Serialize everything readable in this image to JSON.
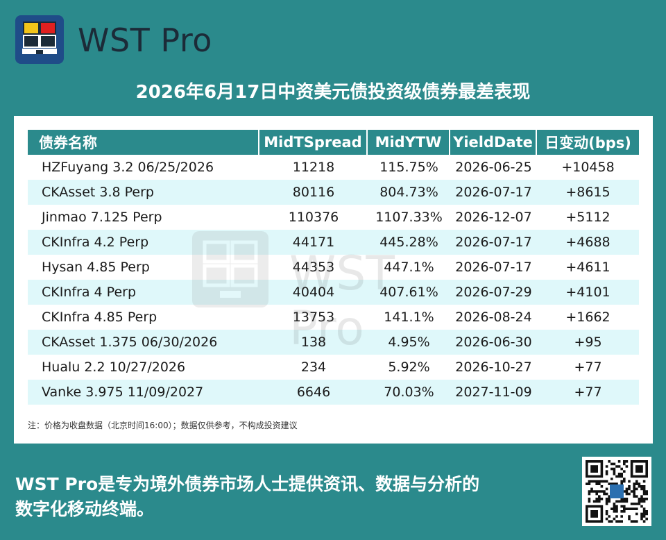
{
  "brand": {
    "name": "WST Pro",
    "logo_colors": {
      "background": "#1f4c88",
      "yellow": "#f3c51a",
      "red": "#e02020",
      "dark": "#1c2b38"
    }
  },
  "title": "2026年6月17日中资美元债投资级债券最差表现",
  "table": {
    "headers": [
      "债券名称",
      "MidTSpread",
      "MidYTW",
      "YieldDate",
      "日变动(bps)"
    ],
    "rows": [
      {
        "name": "HZFuyang 3.2 06/25/2026",
        "spread": "11218",
        "ytw": "115.75%",
        "date": "2026-06-25",
        "change": "+10458"
      },
      {
        "name": "CKAsset 3.8 Perp",
        "spread": "80116",
        "ytw": "804.73%",
        "date": "2026-07-17",
        "change": "+8615"
      },
      {
        "name": "Jinmao 7.125 Perp",
        "spread": "110376",
        "ytw": "1107.33%",
        "date": "2026-12-07",
        "change": "+5112"
      },
      {
        "name": "CKInfra 4.2 Perp",
        "spread": "44171",
        "ytw": "445.28%",
        "date": "2026-07-17",
        "change": "+4688"
      },
      {
        "name": "Hysan 4.85 Perp",
        "spread": "44353",
        "ytw": "447.1%",
        "date": "2026-07-17",
        "change": "+4611"
      },
      {
        "name": "CKInfra 4 Perp",
        "spread": "40404",
        "ytw": "407.61%",
        "date": "2026-07-29",
        "change": "+4101"
      },
      {
        "name": "CKInfra 4.85 Perp",
        "spread": "13753",
        "ytw": "141.1%",
        "date": "2026-08-24",
        "change": "+1662"
      },
      {
        "name": "CKAsset 1.375 06/30/2026",
        "spread": "138",
        "ytw": "4.95%",
        "date": "2026-06-30",
        "change": "+95"
      },
      {
        "name": "Hualu 2.2 10/27/2026",
        "spread": "234",
        "ytw": "5.92%",
        "date": "2026-10-27",
        "change": "+77"
      },
      {
        "name": "Vanke 3.975 11/09/2027",
        "spread": "6646",
        "ytw": "70.03%",
        "date": "2027-11-09",
        "change": "+77"
      }
    ]
  },
  "note": "注：价格为收盘数据（北京时间16:00）；数据仅供参考，不构成投资建议",
  "watermark": "WST Pro",
  "footer": {
    "line1": "WST Pro是专为境外债券市场人士提供资讯、数据与分析的",
    "line2": "数字化移动终端。"
  },
  "colors": {
    "background": "#2b8a8c",
    "header_bg": "#2b8a8c",
    "stripe": "#dff8fa",
    "panel": "#ffffff"
  }
}
